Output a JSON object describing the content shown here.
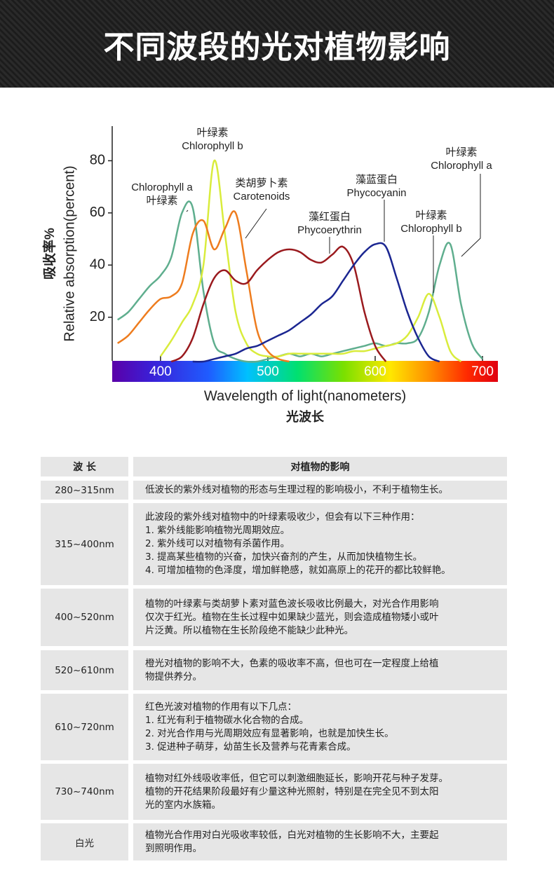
{
  "header": {
    "title": "不同波段的光对植物影响"
  },
  "chart_data": {
    "type": "line",
    "xlabel": "Wavelength of light(nanometers)",
    "xlabel2": "光波长",
    "ylabel": "Relative absorption(percent)",
    "ylabel2": "吸收率%",
    "x": [
      360,
      370,
      380,
      390,
      400,
      410,
      420,
      430,
      440,
      450,
      460,
      470,
      480,
      490,
      500,
      510,
      520,
      530,
      540,
      550,
      560,
      570,
      580,
      590,
      600,
      610,
      620,
      630,
      640,
      650,
      660,
      670,
      680,
      690,
      700
    ],
    "xlim": [
      355,
      715
    ],
    "xticks": [
      400,
      500,
      600,
      700
    ],
    "ylim": [
      3,
      93
    ],
    "yticks": [
      20,
      40,
      60,
      80
    ],
    "series": [
      {
        "color": "#5fae8e",
        "values": [
          19,
          22,
          27,
          32,
          36,
          43,
          60,
          62,
          30,
          10,
          6,
          4,
          3,
          3,
          4,
          5,
          6,
          5,
          6,
          5,
          6,
          7,
          8,
          9,
          10,
          9,
          10,
          10,
          12,
          22,
          40,
          48,
          25,
          10,
          4
        ]
      },
      {
        "color": "#d9ec3c",
        "values": [
          null,
          null,
          null,
          null,
          5,
          11,
          18,
          25,
          40,
          80,
          52,
          22,
          10,
          6,
          5,
          5,
          6,
          6,
          6,
          6,
          6,
          6,
          7,
          7,
          8,
          9,
          10,
          13,
          20,
          29,
          20,
          7,
          3,
          null,
          null
        ]
      },
      {
        "color": "#ee7c1e",
        "values": [
          10,
          13,
          18,
          23,
          27,
          28,
          33,
          52,
          57,
          46,
          54,
          60,
          38,
          15,
          7,
          4,
          3,
          null,
          null,
          null,
          null,
          null,
          null,
          null,
          null,
          null,
          null,
          null,
          null,
          null,
          null,
          null,
          null,
          null,
          null
        ]
      },
      {
        "color": "#9a1a1e",
        "values": [
          null,
          null,
          null,
          null,
          null,
          3,
          5,
          12,
          25,
          35,
          38,
          34,
          33,
          38,
          42,
          45,
          46,
          45,
          42,
          41,
          44,
          47,
          40,
          22,
          9,
          3,
          null,
          null,
          null,
          null,
          null,
          null,
          null,
          null,
          null
        ]
      },
      {
        "color": "#1b2691",
        "values": [
          null,
          null,
          null,
          null,
          null,
          null,
          null,
          3,
          3,
          4,
          5,
          6,
          8,
          9,
          11,
          13,
          15,
          18,
          21,
          25,
          28,
          34,
          40,
          45,
          48,
          47,
          35,
          22,
          12,
          5,
          3,
          null,
          null,
          null,
          null
        ]
      }
    ],
    "annotations": [
      [
        "叶绿素",
        "Chlorophyll b"
      ],
      [
        "Chlorophyll a",
        "叶绿素"
      ],
      [
        "类胡萝卜素",
        "Carotenoids"
      ],
      [
        "藻红蛋白",
        "Phycoerythrin"
      ],
      [
        "藻蓝蛋白",
        "Phycocyanin"
      ],
      [
        "叶绿素",
        "Chlorophyll b"
      ],
      [
        "叶绿素",
        "Chlorophyll a"
      ]
    ]
  },
  "table": {
    "header": [
      "波 长",
      "对植物的影响"
    ],
    "rows": [
      [
        "280~315nm",
        [
          "低波长的紫外线对植物的形态与生理过程的影响极小，不利于植物生长。"
        ]
      ],
      [
        "315~400nm",
        [
          "此波段的紫外线对植物中的叶绿素吸收少，但会有以下三种作用：",
          "1.  紫外线能影响植物光周期效应。",
          "2. 紫外线可以对植物有杀菌作用。",
          "3. 提高某些植物的兴奋，加快兴奋剂的产生，从而加快植物生长。",
          "4. 可增加植物的色泽度，增加鲜艳感，就如高原上的花开的都比较鲜艳。"
        ]
      ],
      [
        "400~520nm",
        [
          "植物的叶绿素与类胡萝卜素对蓝色波长吸收比例最大，对光合作用影响",
          "仅次于红光。植物在生长过程中如果缺少蓝光，则会造成植物矮小或叶",
          "片泛黄。所以植物在生长阶段绝不能缺少此种光。"
        ]
      ],
      [
        "520~610nm",
        [
          "橙光对植物的影响不大，色素的吸收率不高，但也可在一定程度上给植",
          "物提供养分。"
        ]
      ],
      [
        "610~720nm",
        [
          "红色光波对植物的作用有以下几点：",
          "1.  红光有利于植物碳水化合物的合成。",
          "2. 对光合作用与光周期效应有显著影响，也就是加快生长。",
          "3. 促进种子萌芽，幼苗生长及营养与花青素合成。"
        ]
      ],
      [
        "730~740nm",
        [
          "植物对红外线吸收率低，但它可以刺激细胞延长，影响开花与种子发芽。",
          "植物的开花结果阶段最好有少量这种光照射，特别是在完全见不到太阳",
          "光的室内水族箱。"
        ]
      ],
      [
        "白光",
        [
          "植物光合作用对白光吸收率较低，白光对植物的生长影响不大，主要起",
          "到照明作用。"
        ]
      ]
    ]
  }
}
